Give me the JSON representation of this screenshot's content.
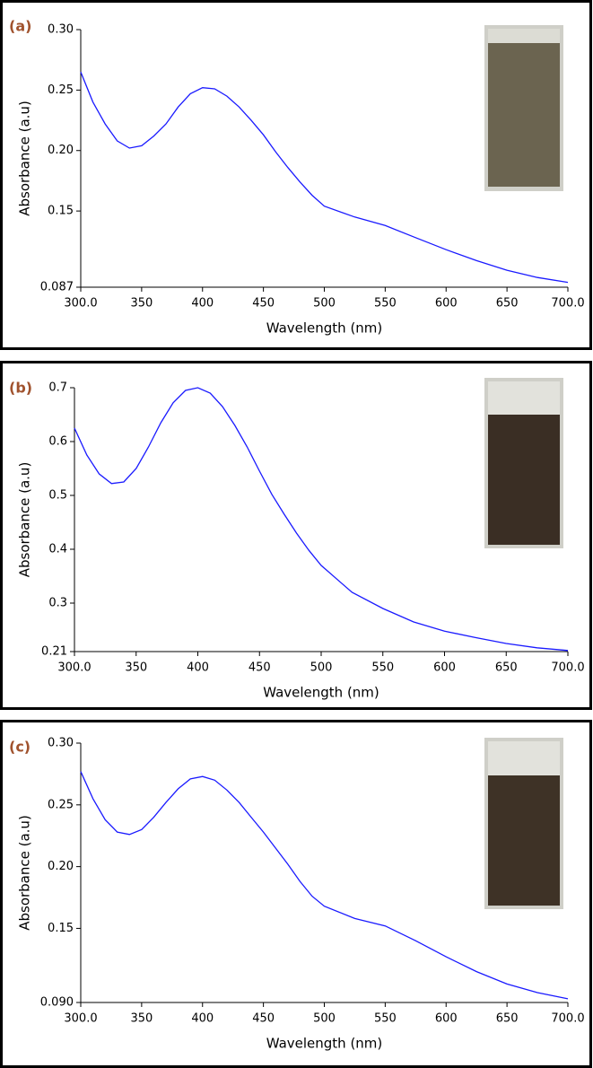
{
  "chart_data": [
    {
      "type": "line",
      "panel_label": "(a)",
      "x_label": "Wavelength (nm)",
      "y_label": "Absorbance (a.u)",
      "x": [
        300,
        310,
        320,
        330,
        340,
        350,
        360,
        370,
        380,
        390,
        400,
        410,
        420,
        430,
        440,
        450,
        460,
        470,
        480,
        490,
        500,
        525,
        550,
        575,
        600,
        625,
        650,
        675,
        700
      ],
      "values": [
        0.265,
        0.24,
        0.222,
        0.208,
        0.202,
        0.204,
        0.212,
        0.222,
        0.236,
        0.247,
        0.252,
        0.251,
        0.245,
        0.236,
        0.225,
        0.213,
        0.199,
        0.186,
        0.174,
        0.163,
        0.154,
        0.145,
        0.138,
        0.128,
        0.118,
        0.109,
        0.101,
        0.095,
        0.091
      ],
      "color": "#1a1aff",
      "xlim": [
        300,
        700
      ],
      "xticks": [
        {
          "value": 300,
          "label": "300.0"
        },
        350,
        400,
        450,
        500,
        550,
        600,
        650,
        {
          "value": 700,
          "label": "700.0"
        }
      ],
      "ylim": [
        0.087,
        0.3
      ],
      "yticks": [
        0.087,
        0.15,
        {
          "value": 0.2,
          "label": "0.20"
        },
        0.25,
        {
          "value": 0.3,
          "label": "0.30"
        }
      ]
    },
    {
      "type": "line",
      "panel_label": "(b)",
      "x_label": "Wavelength (nm)",
      "y_label": "Absorbance (a.u)",
      "x": [
        300,
        310,
        320,
        330,
        340,
        350,
        360,
        370,
        380,
        390,
        400,
        410,
        420,
        430,
        440,
        450,
        460,
        470,
        480,
        490,
        500,
        525,
        550,
        575,
        600,
        625,
        650,
        675,
        700
      ],
      "values": [
        0.625,
        0.575,
        0.54,
        0.522,
        0.525,
        0.55,
        0.59,
        0.635,
        0.672,
        0.695,
        0.7,
        0.69,
        0.665,
        0.63,
        0.59,
        0.545,
        0.502,
        0.465,
        0.43,
        0.398,
        0.37,
        0.32,
        0.29,
        0.265,
        0.248,
        0.236,
        0.225,
        0.217,
        0.212
      ],
      "color": "#1a1aff",
      "xlim": [
        300,
        700
      ],
      "xticks": [
        {
          "value": 300,
          "label": "300.0"
        },
        350,
        400,
        450,
        500,
        550,
        600,
        650,
        {
          "value": 700,
          "label": "700.0"
        }
      ],
      "ylim": [
        0.21,
        0.7
      ],
      "yticks": [
        0.21,
        0.3,
        0.4,
        0.5,
        0.6,
        0.7
      ]
    },
    {
      "type": "line",
      "panel_label": "(c)",
      "x_label": "Wavelength (nm)",
      "y_label": "Absorbance (a.u)",
      "x": [
        300,
        310,
        320,
        330,
        340,
        350,
        360,
        370,
        380,
        390,
        400,
        410,
        420,
        430,
        440,
        450,
        460,
        470,
        480,
        490,
        500,
        525,
        550,
        575,
        600,
        625,
        650,
        675,
        700
      ],
      "values": [
        0.277,
        0.255,
        0.238,
        0.228,
        0.226,
        0.23,
        0.24,
        0.252,
        0.263,
        0.271,
        0.273,
        0.27,
        0.262,
        0.252,
        0.24,
        0.228,
        0.215,
        0.202,
        0.188,
        0.176,
        0.168,
        0.158,
        0.152,
        0.14,
        0.127,
        0.115,
        0.105,
        0.098,
        0.093
      ],
      "color": "#1a1aff",
      "xlim": [
        300,
        700
      ],
      "xticks": [
        {
          "value": 300,
          "label": "300.0"
        },
        350,
        400,
        450,
        500,
        550,
        600,
        650,
        {
          "value": 700,
          "label": "700.0"
        }
      ],
      "ylim": [
        0.09,
        0.3
      ],
      "yticks": [
        {
          "value": 0.09,
          "label": "0.090"
        },
        0.15,
        {
          "value": 0.2,
          "label": "0.20"
        },
        0.25,
        {
          "value": 0.3,
          "label": "0.30"
        }
      ]
    }
  ]
}
